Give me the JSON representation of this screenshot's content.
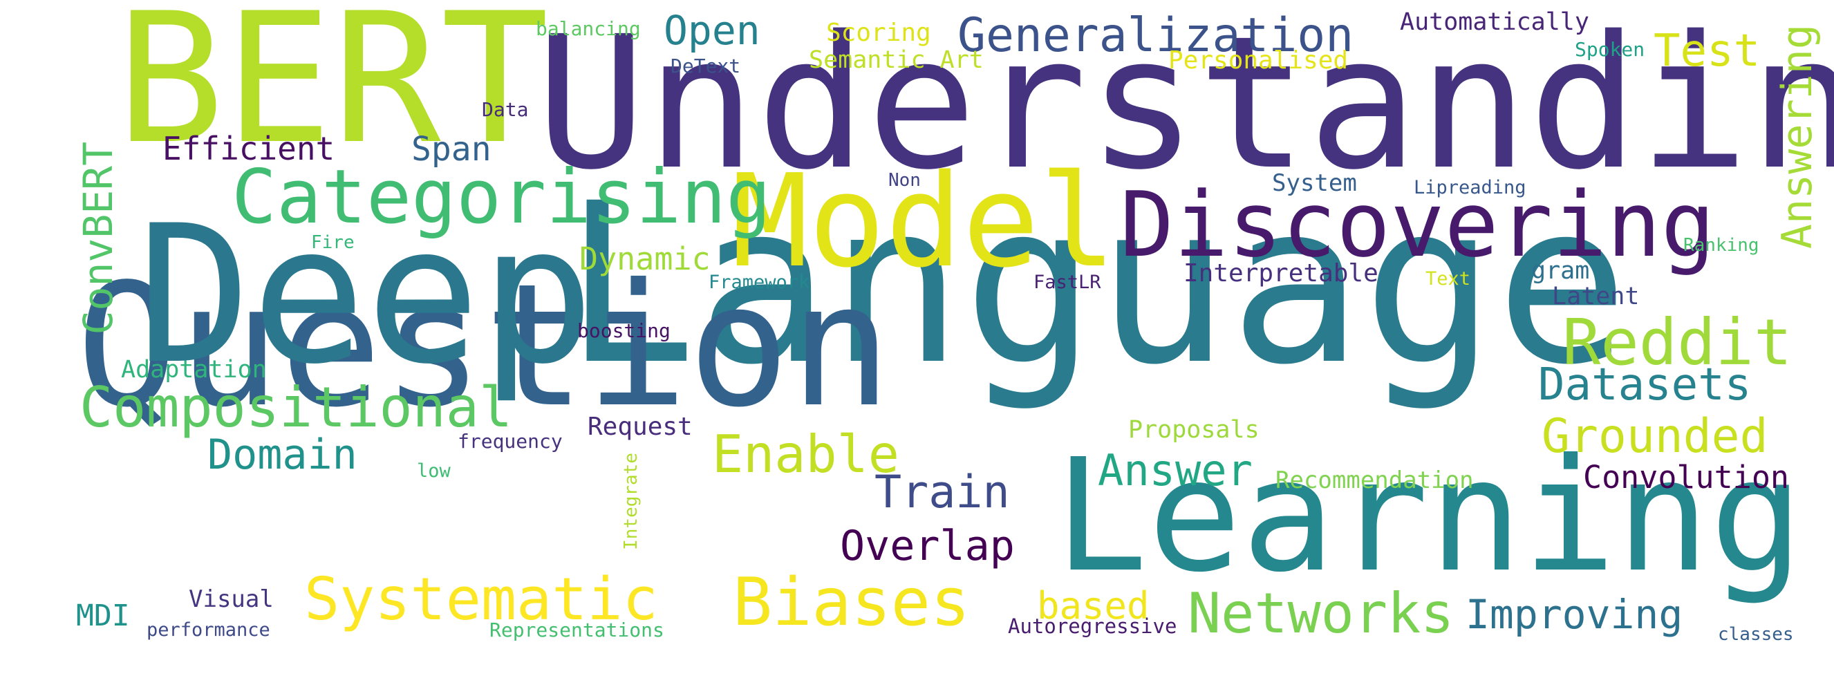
{
  "words": [
    {
      "text": "Language",
      "color": "#2a7b8e"
    },
    {
      "text": "Question",
      "color": "#33638d"
    },
    {
      "text": "Understanding",
      "color": "#45337f"
    },
    {
      "text": "Deep",
      "color": "#2b788e"
    },
    {
      "text": "Learning",
      "color": "#25888e"
    },
    {
      "text": "BERT",
      "color": "#b5de2b"
    },
    {
      "text": "Model",
      "color": "#e3e418"
    },
    {
      "text": "Discovering",
      "color": "#481a6c"
    },
    {
      "text": "Categorising",
      "color": "#40bd72"
    },
    {
      "text": "Compositional",
      "color": "#5cc863"
    },
    {
      "text": "Systematic",
      "color": "#fde725"
    },
    {
      "text": "Biases",
      "color": "#f6e620"
    },
    {
      "text": "Networks",
      "color": "#7ad151"
    },
    {
      "text": "Reddit",
      "color": "#9fda3a"
    },
    {
      "text": "Answering",
      "color": "#a5db36"
    },
    {
      "text": "Generalization",
      "color": "#3b528b"
    },
    {
      "text": "Enable",
      "color": "#c2df23"
    },
    {
      "text": "Grounded",
      "color": "#c8e020"
    },
    {
      "text": "Datasets",
      "color": "#26828e"
    },
    {
      "text": "Overlap",
      "color": "#440154"
    },
    {
      "text": "Train",
      "color": "#3e4c8a"
    },
    {
      "text": "Answer",
      "color": "#22a785"
    },
    {
      "text": "Domain",
      "color": "#21918c"
    },
    {
      "text": "Improving",
      "color": "#2c718e"
    },
    {
      "text": "ConvBERT",
      "color": "#52c569"
    },
    {
      "text": "Test",
      "color": "#d8e219"
    },
    {
      "text": "Open",
      "color": "#26818e"
    },
    {
      "text": "Convolution",
      "color": "#440154"
    },
    {
      "text": "Efficient",
      "color": "#471063"
    },
    {
      "text": "Span",
      "color": "#33638d"
    },
    {
      "text": "based",
      "color": "#f1e51d"
    },
    {
      "text": "Dynamic",
      "color": "#a0da39"
    },
    {
      "text": "Interpretable",
      "color": "#46307e"
    },
    {
      "text": "Request",
      "color": "#472d7b"
    },
    {
      "text": "Proposals",
      "color": "#9dd93b"
    },
    {
      "text": "Recommendation",
      "color": "#7fd34e"
    },
    {
      "text": "Automatically",
      "color": "#482576"
    },
    {
      "text": "Scoring",
      "color": "#dde318"
    },
    {
      "text": "Semantic Art",
      "color": "#bddf26"
    },
    {
      "text": "Personalised",
      "color": "#e5e419"
    },
    {
      "text": "System",
      "color": "#355f8d"
    },
    {
      "text": "Latent",
      "color": "#3f4788"
    },
    {
      "text": "gram",
      "color": "#2d708e"
    },
    {
      "text": "MDI",
      "color": "#20928c"
    },
    {
      "text": "Visual",
      "color": "#453581"
    },
    {
      "text": "Adaptation",
      "color": "#2fb47c"
    },
    {
      "text": "Autoregressive",
      "color": "#481c6e"
    },
    {
      "text": "balancing",
      "color": "#5ec962"
    },
    {
      "text": "DeText",
      "color": "#3b528b"
    },
    {
      "text": "Spoken",
      "color": "#1fa187"
    },
    {
      "text": "Data",
      "color": "#472c7a"
    },
    {
      "text": "Non",
      "color": "#414487"
    },
    {
      "text": "Lipreading",
      "color": "#38588c"
    },
    {
      "text": "Fire",
      "color": "#35b779"
    },
    {
      "text": "Ranking",
      "color": "#4ac16d"
    },
    {
      "text": "Framework",
      "color": "#23898e"
    },
    {
      "text": "FastLR",
      "color": "#482173"
    },
    {
      "text": "Text",
      "color": "#d2e21b"
    },
    {
      "text": "boosting",
      "color": "#471365"
    },
    {
      "text": "frequency",
      "color": "#46327e"
    },
    {
      "text": "low",
      "color": "#3dbc74"
    },
    {
      "text": "Integrate",
      "color": "#b2dd2d"
    },
    {
      "text": "performance",
      "color": "#3e4989"
    },
    {
      "text": "Representations",
      "color": "#44bf70"
    },
    {
      "text": "classes",
      "color": "#355e8d"
    }
  ]
}
